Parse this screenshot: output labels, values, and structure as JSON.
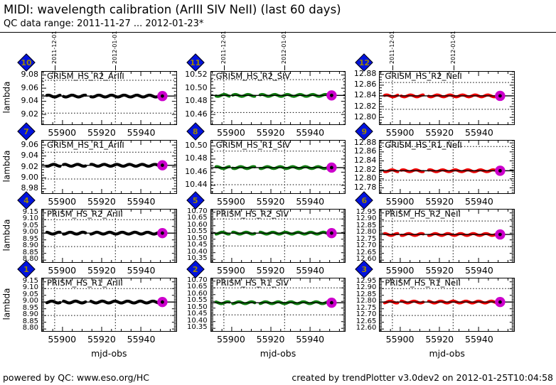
{
  "header": {
    "title": "MIDI: wavelength calibration (ArIII SIV NeII) (last 60 days)",
    "subtitle": "QC data range: 2011-11-27 ... 2012-01-23*"
  },
  "footer": {
    "left": "powered by QC: www.eso.org/HC",
    "right": "created by trendPlotter v3.0dev2 on 2012-01-25T10:04:58"
  },
  "colors": {
    "ArIII": "#000000",
    "SIV": "#0f7d0f",
    "NeII": "#ee0000",
    "last_marker": "#cc00cc",
    "mean_line": "#000000",
    "badge_bg": "#0013de",
    "badge_text": "#9c8400"
  },
  "axis": {
    "xlabel": "mjd-obs",
    "ylabel": "lambda",
    "xmin": 55889.5,
    "xmax": 55958,
    "xticks": [
      55900,
      55920,
      55940
    ],
    "x_minor_step": 5,
    "date_marks": [
      {
        "label": "2011-12-01",
        "mjd": 55896
      },
      {
        "label": "2012-01-01",
        "mjd": 55927
      }
    ],
    "data_segments": [
      [
        55892,
        55899
      ],
      [
        55900.5,
        55912
      ],
      [
        55914.5,
        55950
      ]
    ],
    "last_x": 55951
  },
  "chart_data": [
    {
      "id": 10,
      "row": 0,
      "col": 0,
      "type": "scatter",
      "label": "GRISM_HS_R2_ArIII",
      "species": "ArIII",
      "color": "#000000",
      "value": 9.048,
      "ylim": [
        9.005,
        9.085
      ],
      "yticks": [
        9.08,
        9.06,
        9.04,
        9.02
      ],
      "y_minor_step": 0.005,
      "thresholds": [
        9.072,
        9.022
      ]
    },
    {
      "id": 11,
      "row": 0,
      "col": 1,
      "type": "scatter",
      "label": "GRISM_HS_R2_SIV",
      "species": "SIV",
      "color": "#0f7d0f",
      "value": 10.489,
      "ylim": [
        10.445,
        10.525
      ],
      "yticks": [
        10.52,
        10.5,
        10.48,
        10.46
      ],
      "y_minor_step": 0.005,
      "thresholds": [
        10.513,
        10.463
      ]
    },
    {
      "id": 12,
      "row": 0,
      "col": 2,
      "type": "scatter",
      "label": "GRISM_HS_R2_NeII",
      "species": "NeII",
      "color": "#ee0000",
      "value": 12.84,
      "ylim": [
        12.787,
        12.885
      ],
      "yticks": [
        12.88,
        12.86,
        12.84,
        12.82,
        12.8
      ],
      "y_minor_step": 0.005,
      "thresholds": [
        12.865,
        12.815
      ]
    },
    {
      "id": 7,
      "row": 1,
      "col": 0,
      "type": "scatter",
      "label": "GRISM_HS_R1_ArIII",
      "species": "ArIII",
      "color": "#000000",
      "value": 9.023,
      "ylim": [
        8.972,
        9.068
      ],
      "yticks": [
        9.06,
        9.04,
        9.02,
        9.0,
        8.98
      ],
      "y_minor_step": 0.005,
      "thresholds": [
        9.047,
        8.998
      ]
    },
    {
      "id": 8,
      "row": 1,
      "col": 1,
      "type": "scatter",
      "label": "GRISM_HS_R1_SIV",
      "species": "SIV",
      "color": "#0f7d0f",
      "value": 10.467,
      "ylim": [
        10.428,
        10.508
      ],
      "yticks": [
        10.5,
        10.48,
        10.46,
        10.44
      ],
      "y_minor_step": 0.005,
      "thresholds": [
        10.492,
        10.441
      ]
    },
    {
      "id": 9,
      "row": 1,
      "col": 2,
      "type": "scatter",
      "label": "GRISM_HS_R1_NeII",
      "species": "NeII",
      "color": "#ee0000",
      "value": 12.818,
      "ylim": [
        12.768,
        12.885
      ],
      "yticks": [
        12.88,
        12.86,
        12.84,
        12.82,
        12.8,
        12.78
      ],
      "y_minor_step": 0.005,
      "thresholds": [
        12.872,
        12.797
      ]
    },
    {
      "id": 4,
      "row": 2,
      "col": 0,
      "type": "scatter",
      "label": "PRISM_HS_R2_ArIII",
      "species": "ArIII",
      "color": "#000000",
      "value": 9.0,
      "ylim": [
        8.785,
        9.175
      ],
      "yticks": [
        9.15,
        9.1,
        9.05,
        9.0,
        8.95,
        8.9,
        8.85,
        8.8
      ],
      "y_minor_step": 0.01,
      "thresholds": [
        9.1,
        8.9
      ]
    },
    {
      "id": 5,
      "row": 2,
      "col": 1,
      "type": "scatter",
      "label": "PRISM_HS_R2_SIV",
      "species": "SIV",
      "color": "#0f7d0f",
      "value": 10.545,
      "ylim": [
        10.33,
        10.72
      ],
      "yticks": [
        10.7,
        10.65,
        10.6,
        10.55,
        10.5,
        10.45,
        10.4,
        10.35
      ],
      "y_minor_step": 0.01,
      "thresholds": [
        10.65,
        10.45
      ]
    },
    {
      "id": 6,
      "row": 2,
      "col": 2,
      "type": "scatter",
      "label": "PRISM_HS_R2_NeII",
      "species": "NeII",
      "color": "#ee0000",
      "value": 12.79,
      "ylim": [
        12.585,
        12.975
      ],
      "yticks": [
        12.95,
        12.9,
        12.85,
        12.8,
        12.75,
        12.7,
        12.65,
        12.6
      ],
      "y_minor_step": 0.01,
      "thresholds": [
        12.89,
        12.7
      ]
    },
    {
      "id": 1,
      "row": 3,
      "col": 0,
      "type": "scatter",
      "label": "PRISM_HS_R1_ArIII",
      "species": "ArIII",
      "color": "#000000",
      "value": 9.0,
      "ylim": [
        8.785,
        9.175
      ],
      "yticks": [
        9.15,
        9.1,
        9.05,
        9.0,
        8.95,
        8.9,
        8.85,
        8.8
      ],
      "y_minor_step": 0.01,
      "thresholds": [
        9.1,
        8.9
      ]
    },
    {
      "id": 2,
      "row": 3,
      "col": 1,
      "type": "scatter",
      "label": "PRISM_HS_R1_SIV",
      "species": "SIV",
      "color": "#0f7d0f",
      "value": 10.54,
      "ylim": [
        10.33,
        10.72
      ],
      "yticks": [
        10.7,
        10.65,
        10.6,
        10.55,
        10.5,
        10.45,
        10.4,
        10.35
      ],
      "y_minor_step": 0.01,
      "thresholds": [
        10.65,
        10.45
      ]
    },
    {
      "id": 3,
      "row": 3,
      "col": 2,
      "type": "scatter",
      "label": "PRISM_HS_R1_NeII",
      "species": "NeII",
      "color": "#ee0000",
      "value": 12.8,
      "ylim": [
        12.585,
        12.975
      ],
      "yticks": [
        12.95,
        12.9,
        12.85,
        12.8,
        12.75,
        12.7,
        12.65,
        12.6
      ],
      "y_minor_step": 0.01,
      "thresholds": [
        12.9,
        12.7
      ]
    }
  ]
}
